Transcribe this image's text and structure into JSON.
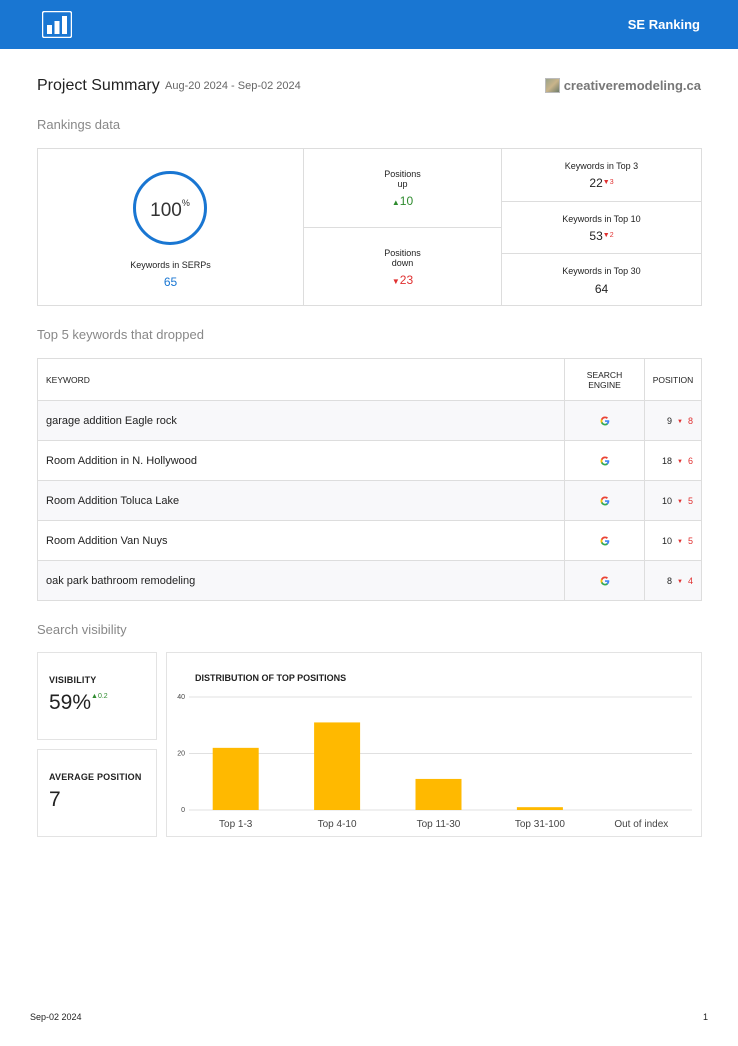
{
  "header": {
    "brand": "SE Ranking",
    "logo_icon": "bar-chart-icon"
  },
  "project": {
    "title": "Project Summary",
    "dates": "Aug-20 2024 - Sep-02 2024",
    "domain": "creativeremodeling.ca"
  },
  "rankings": {
    "section_title": "Rankings data",
    "serp": {
      "percent": "100",
      "percent_sign": "%",
      "label": "Keywords in SERPs",
      "value": "65"
    },
    "positions_up": {
      "label_line1": "Positions",
      "label_line2": "up",
      "value": "10"
    },
    "positions_down": {
      "label_line1": "Positions",
      "label_line2": "down",
      "value": "23"
    },
    "top3": {
      "label": "Keywords in Top 3",
      "value": "22",
      "delta": "3"
    },
    "top10": {
      "label": "Keywords in Top 10",
      "value": "53",
      "delta": "2"
    },
    "top30": {
      "label": "Keywords in Top 30",
      "value": "64"
    }
  },
  "dropped": {
    "section_title": "Top 5 keywords that dropped",
    "headers": {
      "keyword": "KEYWORD",
      "engine_line1": "SEARCH",
      "engine_line2": "ENGINE",
      "position": "POSITION"
    },
    "rows": [
      {
        "keyword": "garage addition Eagle rock",
        "position": "9",
        "change": "8"
      },
      {
        "keyword": "Room Addition in N. Hollywood",
        "position": "18",
        "change": "6"
      },
      {
        "keyword": "Room Addition Toluca Lake",
        "position": "10",
        "change": "5"
      },
      {
        "keyword": "Room Addition Van Nuys",
        "position": "10",
        "change": "5"
      },
      {
        "keyword": "oak park bathroom remodeling",
        "position": "8",
        "change": "4"
      }
    ]
  },
  "visibility": {
    "section_title": "Search visibility",
    "visibility_label": "VISIBILITY",
    "visibility_value": "59%",
    "visibility_delta": "0.2",
    "avg_label": "AVERAGE POSITION",
    "avg_value": "7"
  },
  "chart_data": {
    "type": "bar",
    "title": "DISTRIBUTION OF TOP POSITIONS",
    "categories": [
      "Top 1-3",
      "Top 4-10",
      "Top 11-30",
      "Top 31-100",
      "Out of index"
    ],
    "values": [
      22,
      31,
      11,
      1,
      0
    ],
    "ylim": [
      0,
      40
    ],
    "yticks": [
      "0",
      "20",
      "40"
    ],
    "grid": true,
    "bar_color": "#ffb900"
  },
  "footer": {
    "date": "Sep-02 2024",
    "page": "1"
  }
}
